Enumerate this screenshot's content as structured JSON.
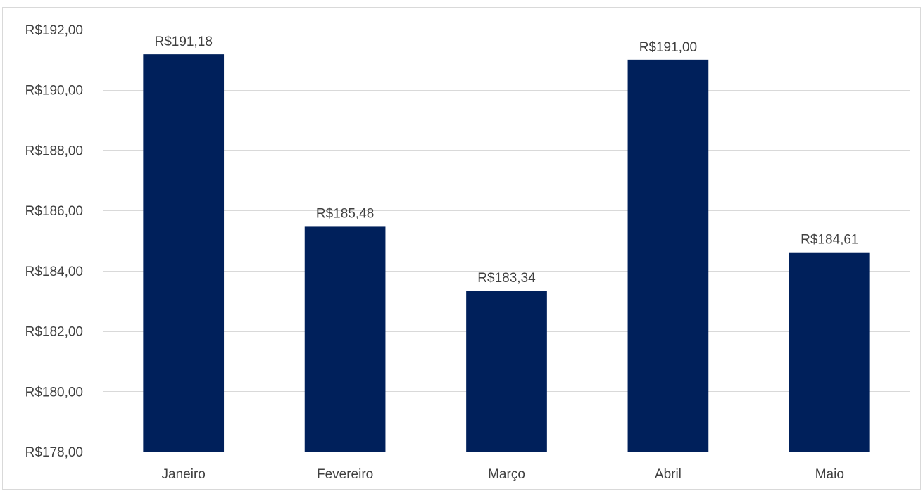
{
  "chart_data": {
    "type": "bar",
    "categories": [
      "Janeiro",
      "Fevereiro",
      "Março",
      "Abril",
      "Maio"
    ],
    "values": [
      191.18,
      185.48,
      183.34,
      191.0,
      184.61
    ],
    "data_labels": [
      "R$191,18",
      "R$185,48",
      "R$183,34",
      "R$191,00",
      "R$184,61"
    ],
    "y_ticks": [
      178,
      180,
      182,
      184,
      186,
      188,
      190,
      192
    ],
    "y_tick_labels": [
      "R$178,00",
      "R$180,00",
      "R$182,00",
      "R$184,00",
      "R$186,00",
      "R$188,00",
      "R$190,00",
      "R$192,00"
    ],
    "ylim": [
      178,
      192
    ],
    "title": "",
    "xlabel": "",
    "ylabel": "",
    "grid": "horizontal",
    "legend": "none",
    "bar_color": "#00205b",
    "gridline_color": "#d9d9d9",
    "text_color": "#404040"
  }
}
